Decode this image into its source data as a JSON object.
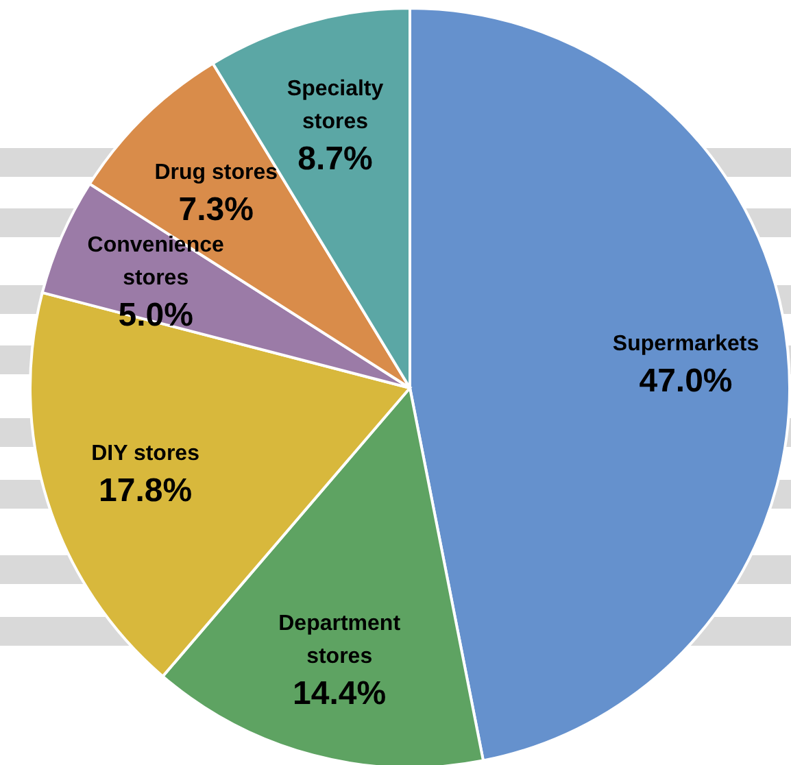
{
  "chart_data": {
    "type": "pie",
    "categories": [
      "Supermarkets",
      "Department stores",
      "DIY stores",
      "Convenience stores",
      "Drug stores",
      "Specialty stores"
    ],
    "values": [
      47.0,
      14.4,
      17.8,
      5.0,
      7.3,
      8.7
    ],
    "value_labels": [
      "47.0%",
      "14.4%",
      "17.8%",
      "5.0%",
      "7.3%",
      "8.7%"
    ],
    "colors": [
      "#6591cd",
      "#5ea362",
      "#d8b83c",
      "#9b7ba7",
      "#d98c4a",
      "#5ba7a5"
    ]
  }
}
